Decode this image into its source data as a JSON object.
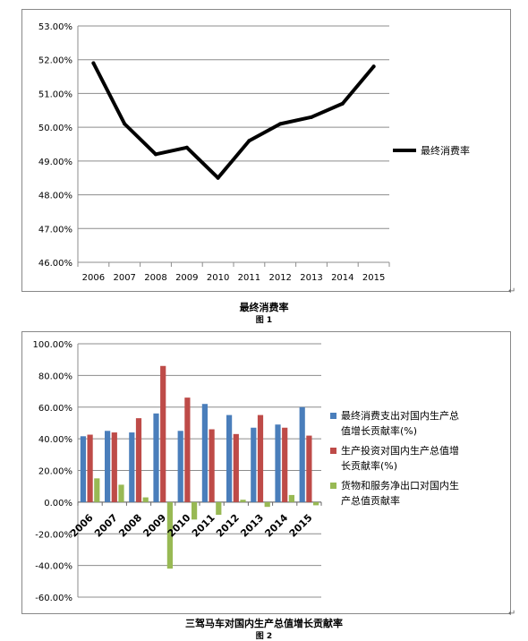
{
  "figures": [
    {
      "caption": "最终消费率",
      "figure_label": "图 1"
    },
    {
      "caption": "三驾马车对国内生产总值增长贡献率",
      "figure_label": "图 2"
    }
  ],
  "chart_data": [
    {
      "type": "line",
      "categories": [
        "2006",
        "2007",
        "2008",
        "2009",
        "2010",
        "2011",
        "2012",
        "2013",
        "2014",
        "2015"
      ],
      "series": [
        {
          "name": "最终消费率",
          "color": "#000000",
          "values": [
            51.9,
            50.1,
            49.2,
            49.4,
            48.5,
            49.6,
            50.1,
            50.3,
            50.7,
            51.8
          ]
        }
      ],
      "ylim": [
        46,
        53
      ],
      "yticks": [
        "53.00%",
        "52.00%",
        "51.00%",
        "50.00%",
        "49.00%",
        "48.00%",
        "47.00%",
        "46.00%"
      ],
      "grid": true,
      "legend_position": "right"
    },
    {
      "type": "bar",
      "categories": [
        "2006",
        "2007",
        "2008",
        "2009",
        "2010",
        "2011",
        "2012",
        "2013",
        "2014",
        "2015"
      ],
      "series": [
        {
          "name": "最终消费支出对国内生产总值增长贡献率(%)",
          "color": "#4a7ebb",
          "values": [
            41.6,
            45.0,
            44.0,
            56.0,
            45.0,
            62.0,
            55.0,
            47.0,
            49.0,
            60.0
          ]
        },
        {
          "name": "生产投资对国内生产总值增长贡献率(%)",
          "color": "#be4b48",
          "values": [
            42.6,
            44.0,
            53.0,
            86.0,
            66.0,
            46.0,
            43.0,
            55.0,
            47.0,
            42.0
          ]
        },
        {
          "name": "货物和服务净出口对国内生产总值贡献率",
          "color": "#98b954",
          "values": [
            15.0,
            11.0,
            3.0,
            -42.0,
            -11.0,
            -8.0,
            1.5,
            -3.0,
            4.5,
            -2.0
          ]
        }
      ],
      "ylim": [
        -60,
        100
      ],
      "yticks": [
        "100.00%",
        "80.00%",
        "60.00%",
        "40.00%",
        "20.00%",
        "0.00%",
        "-20.00%",
        "-40.00%",
        "-60.00%"
      ],
      "grid": true,
      "legend_position": "right"
    }
  ]
}
